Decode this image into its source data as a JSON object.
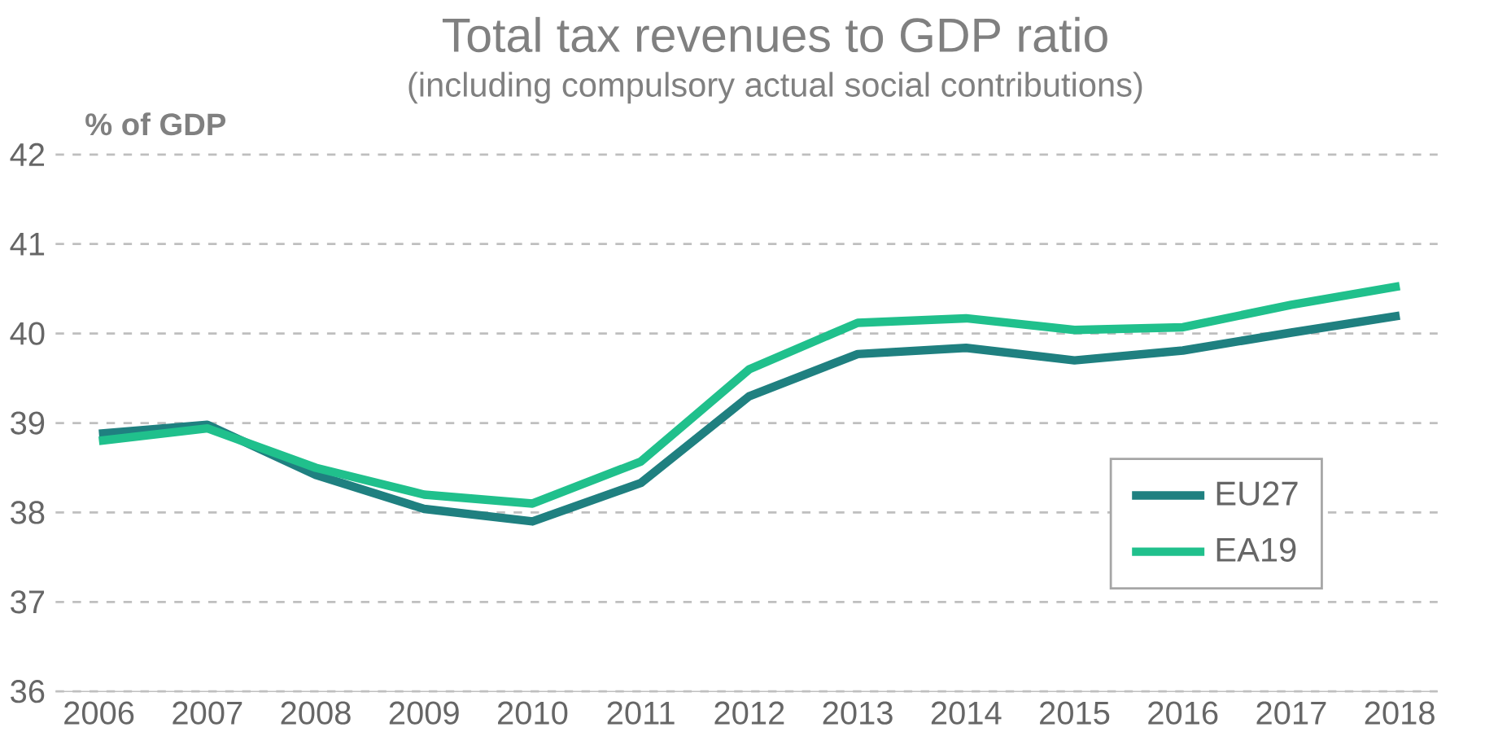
{
  "chart_data": {
    "type": "line",
    "title": "Total tax revenues to GDP ratio",
    "subtitle": "(including  compulsory actual social contributions)",
    "ylabel": "% of GDP",
    "categories": [
      "2006",
      "2007",
      "2008",
      "2009",
      "2010",
      "2011",
      "2012",
      "2013",
      "2014",
      "2015",
      "2016",
      "2017",
      "2018"
    ],
    "series": [
      {
        "name": "EU27",
        "color": "#1f8080",
        "values": [
          38.88,
          38.98,
          38.42,
          38.04,
          37.9,
          38.33,
          39.3,
          39.77,
          39.84,
          39.7,
          39.81,
          40.01,
          40.2
        ]
      },
      {
        "name": "EA19",
        "color": "#20c08c",
        "values": [
          38.8,
          38.94,
          38.5,
          38.2,
          38.1,
          38.57,
          39.6,
          40.12,
          40.17,
          40.04,
          40.07,
          40.32,
          40.53
        ]
      }
    ],
    "ylim": [
      36,
      42
    ],
    "yticks": [
      36,
      37,
      38,
      39,
      40,
      41,
      42
    ],
    "grid": "y",
    "legend": "bottom right",
    "marker": "none",
    "line_style": "solid"
  }
}
